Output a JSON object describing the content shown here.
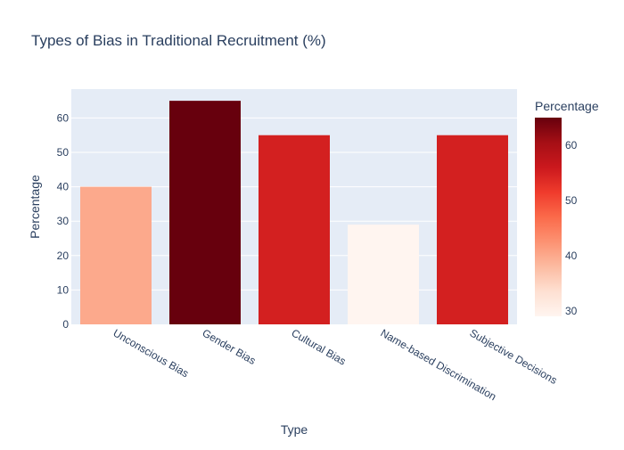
{
  "chart_data": {
    "type": "bar",
    "title": "Types of Bias in Traditional Recruitment (%)",
    "xlabel": "Type",
    "ylabel": "Percentage",
    "categories": [
      "Unconscious Bias",
      "Gender Bias",
      "Cultural Bias",
      "Name-based Discrimination",
      "Subjective Decisions"
    ],
    "values": [
      40,
      65,
      55,
      29,
      55
    ],
    "ylim": [
      0,
      68.4
    ],
    "yticks": [
      0,
      10,
      20,
      30,
      40,
      50,
      60
    ],
    "grid": true,
    "colorscale": {
      "name": "Reds",
      "title": "Percentage",
      "range": [
        29,
        65
      ],
      "ticks": [
        30,
        40,
        50,
        60
      ]
    }
  }
}
